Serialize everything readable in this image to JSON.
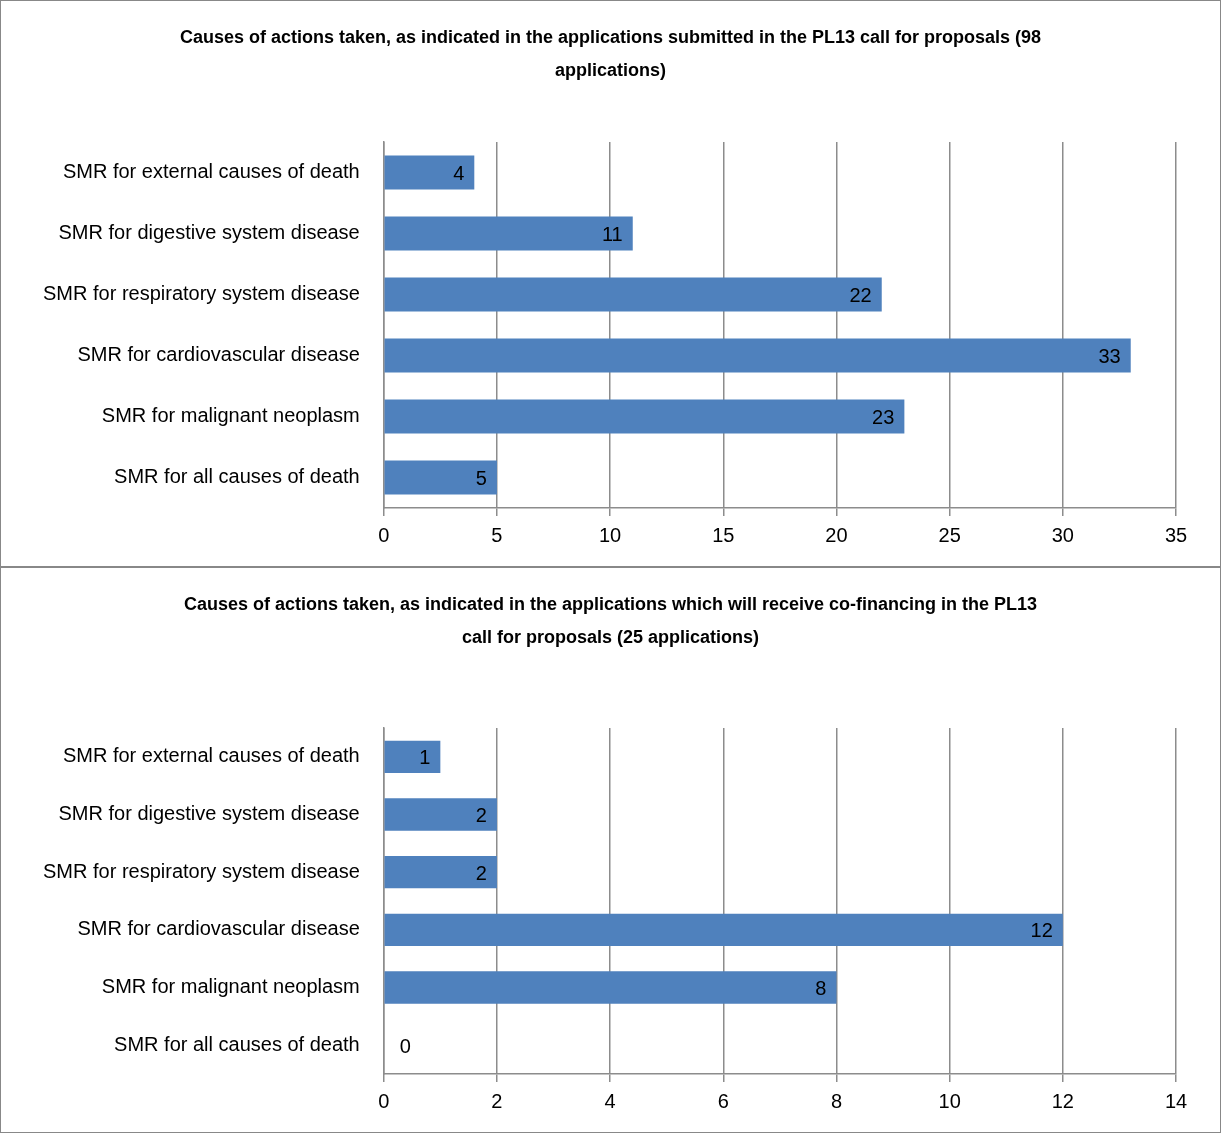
{
  "chart_data": [
    {
      "type": "bar",
      "orientation": "horizontal",
      "title": "Causes of actions taken, as indicated in the applications submitted in the PL13 call for proposals (98 applications)",
      "categories": [
        "SMR for external causes of death",
        "SMR for digestive system disease",
        "SMR for respiratory system disease",
        "SMR for cardiovascular disease",
        "SMR for malignant neoplasm",
        "SMR for all causes of death"
      ],
      "values": [
        4,
        11,
        22,
        33,
        23,
        5
      ],
      "color": "#4f81bd",
      "xlim": [
        0,
        35
      ],
      "xticks": [
        0,
        5,
        10,
        15,
        20,
        25,
        30,
        35
      ],
      "grid": "x",
      "data_labels": true
    },
    {
      "type": "bar",
      "orientation": "horizontal",
      "title": "Causes of actions taken, as indicated in the applications which will receive co-financing in the PL13 call for proposals (25 applications)",
      "categories": [
        "SMR for external causes of death",
        "SMR for digestive system disease",
        "SMR for respiratory system disease",
        "SMR for cardiovascular disease",
        "SMR for malignant neoplasm",
        "SMR for all causes of death"
      ],
      "values": [
        1,
        2,
        2,
        12,
        8,
        0
      ],
      "color": "#4f81bd",
      "xlim": [
        0,
        14
      ],
      "xticks": [
        0,
        2,
        4,
        6,
        8,
        10,
        12,
        14
      ],
      "grid": "x",
      "data_labels": true
    }
  ]
}
